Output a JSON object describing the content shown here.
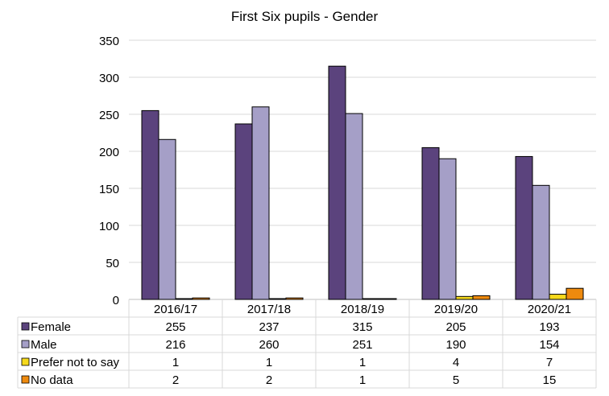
{
  "chart_data": {
    "type": "bar",
    "title": "First Six pupils - Gender",
    "categories": [
      "2016/17",
      "2017/18",
      "2018/19",
      "2019/20",
      "2020/21"
    ],
    "ylim": [
      0,
      350
    ],
    "yticks": [
      0,
      50,
      100,
      150,
      200,
      250,
      300,
      350
    ],
    "grid": true,
    "legend": "data-table-below",
    "series": [
      {
        "name": "Female",
        "color": "#5b437d",
        "values": [
          255,
          237,
          315,
          205,
          193
        ]
      },
      {
        "name": "Male",
        "color": "#a59fc7",
        "values": [
          216,
          260,
          251,
          190,
          154
        ]
      },
      {
        "name": "Prefer not to say",
        "color": "#f5d91c",
        "values": [
          1,
          1,
          1,
          4,
          7
        ]
      },
      {
        "name": "No data",
        "color": "#ee8a0e",
        "values": [
          2,
          2,
          1,
          5,
          15
        ]
      }
    ]
  }
}
